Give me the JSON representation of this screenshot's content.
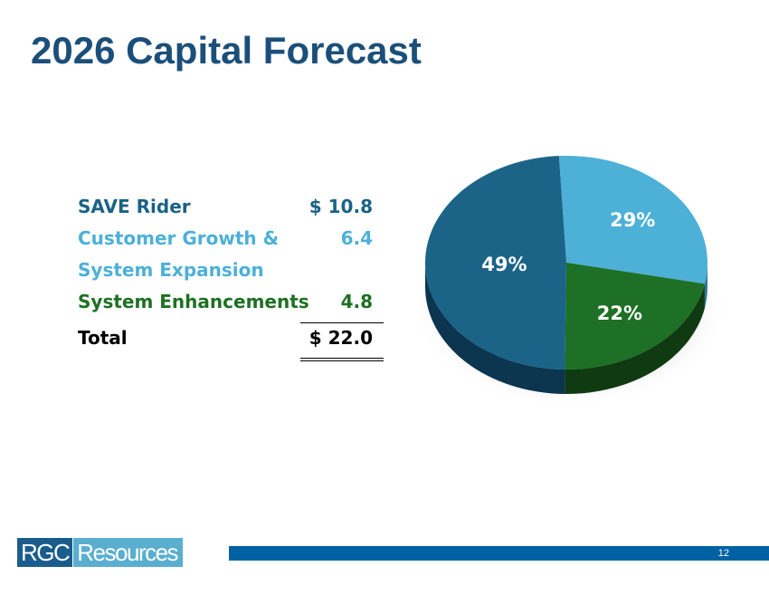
{
  "title": "2026 Capital Forecast",
  "table": {
    "rows": [
      {
        "label": "SAVE Rider",
        "value": "$ 10.8"
      },
      {
        "label": "Customer Growth &",
        "label2": "System Expansion",
        "value": "6.4"
      },
      {
        "label": "System Enhancements",
        "value": "4.8"
      },
      {
        "label": "Total",
        "value": "$ 22.0"
      }
    ]
  },
  "chart_data": {
    "type": "pie",
    "style": "3d",
    "slices": [
      {
        "label": "29%",
        "value": 29,
        "category": "Customer Growth & System Expansion",
        "color": "#4db0d6",
        "side_color": "#2f7a99"
      },
      {
        "label": "22%",
        "value": 22,
        "category": "System Enhancements",
        "color": "#1e7026",
        "side_color": "#0f3a12"
      },
      {
        "label": "49%",
        "value": 49,
        "category": "SAVE Rider",
        "color": "#1c6487",
        "side_color": "#0c3550"
      }
    ]
  },
  "footer": {
    "logo_part1": "RGC",
    "logo_part2": "Resources",
    "page_number": "12"
  },
  "colors": {
    "title": "#1b4f7a",
    "footer_bar": "#0062a3"
  }
}
